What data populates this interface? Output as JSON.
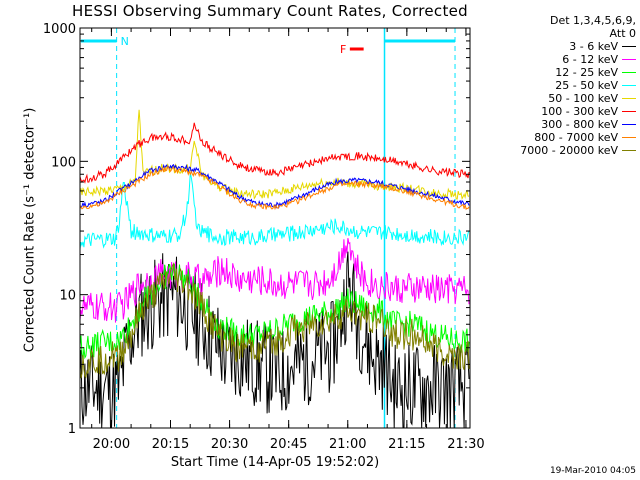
{
  "chart_data": {
    "type": "line",
    "title": "HESSI Observing Summary Count Rates, Corrected",
    "xlabel": "Start Time (14-Apr-05 19:52:02)",
    "ylabel": "Corrected Count Rate (s⁻¹ detector⁻¹)",
    "x_unit": "minutes after 19:52:02",
    "xlim": [
      0,
      99
    ],
    "ylim": [
      1,
      1000
    ],
    "yscale": "log",
    "x_tick_labels": [
      "20:00",
      "20:15",
      "20:30",
      "20:45",
      "21:00",
      "21:15",
      "21:30"
    ],
    "x_tick_values": [
      7.97,
      22.97,
      37.97,
      52.97,
      67.97,
      82.97,
      97.97
    ],
    "y_tick_labels": [
      "1",
      "10",
      "100",
      "1000"
    ],
    "y_tick_values": [
      1,
      10,
      100,
      1000
    ],
    "legend_header": [
      "Det 1,3,4,5,6,9,",
      "Att 0"
    ],
    "legend_position": "right",
    "annotations": {
      "night_label": "N",
      "flare_label": "F"
    },
    "series": [
      {
        "name": "3 - 6 keV",
        "color": "#000000",
        "x": [
          0,
          10,
          12,
          15,
          20,
          24,
          27,
          31,
          37,
          40,
          45,
          50,
          55,
          60,
          64,
          66,
          68,
          71,
          74,
          77,
          80,
          84,
          88,
          95
        ],
        "y": [
          2,
          2,
          4,
          7,
          9,
          10,
          8,
          6,
          3.5,
          3.5,
          3,
          2.5,
          3,
          3.5,
          4,
          6,
          12,
          6,
          3.5,
          3,
          2,
          2,
          2,
          2
        ]
      },
      {
        "name": "6 - 12 keV",
        "color": "#ff00ff",
        "x": [
          0,
          10,
          12,
          15,
          20,
          25,
          30,
          33,
          36,
          40,
          45,
          50,
          55,
          60,
          63,
          66,
          68,
          70,
          72,
          75,
          80,
          85,
          90,
          98
        ],
        "y": [
          8,
          8,
          9,
          12,
          14,
          14,
          13,
          13,
          16,
          13,
          13,
          12,
          12,
          12,
          13,
          18,
          28,
          16,
          13,
          12,
          11,
          11,
          11,
          11
        ]
      },
      {
        "name": "12 - 25 keV",
        "color": "#00ff00",
        "x": [
          0,
          10,
          13,
          16,
          20,
          23,
          27,
          31,
          35,
          40,
          45,
          50,
          55,
          60,
          64,
          68,
          72,
          76,
          80,
          85,
          90,
          95,
          98
        ],
        "y": [
          4,
          4.5,
          6,
          9,
          12,
          15,
          13,
          9,
          6,
          5,
          5,
          5.5,
          6.5,
          7,
          7.5,
          9,
          8,
          7.5,
          6,
          6,
          5,
          4.5,
          4.5
        ]
      },
      {
        "name": "25 - 50 keV",
        "color": "#00ffff",
        "x": [
          0,
          9,
          10,
          11,
          13,
          17,
          21,
          25,
          27,
          28,
          30,
          35,
          40,
          45,
          50,
          55,
          60,
          65,
          70,
          75,
          80,
          85,
          90,
          98
        ],
        "y": [
          25,
          26,
          35,
          70,
          30,
          28,
          27,
          28,
          40,
          75,
          30,
          27,
          27,
          27,
          28,
          29,
          31,
          33,
          30,
          29,
          29,
          28,
          27,
          27
        ]
      },
      {
        "name": "50 - 100 keV",
        "color": "#e6d800",
        "x": [
          0,
          10,
          14,
          15,
          16,
          18,
          22,
          26,
          28,
          29,
          31,
          35,
          40,
          45,
          50,
          55,
          60,
          65,
          70,
          75,
          80,
          85,
          90,
          98
        ],
        "y": [
          58,
          62,
          70,
          250,
          80,
          85,
          90,
          85,
          90,
          140,
          80,
          65,
          58,
          56,
          58,
          63,
          68,
          70,
          68,
          66,
          64,
          62,
          58,
          56
        ]
      },
      {
        "name": "100 - 300 keV",
        "color": "#ff0000",
        "x": [
          0,
          6,
          10,
          14,
          18,
          22,
          26,
          28,
          29,
          31,
          35,
          40,
          45,
          50,
          55,
          60,
          65,
          70,
          75,
          80,
          85,
          90,
          98
        ],
        "y": [
          72,
          80,
          100,
          130,
          150,
          155,
          145,
          145,
          190,
          140,
          115,
          95,
          85,
          82,
          90,
          100,
          108,
          110,
          105,
          100,
          92,
          85,
          80
        ]
      },
      {
        "name": "300 - 800 keV",
        "color": "#0000ff",
        "x": [
          0,
          6,
          10,
          14,
          18,
          22,
          26,
          30,
          35,
          40,
          45,
          50,
          55,
          60,
          65,
          70,
          75,
          80,
          85,
          90,
          98
        ],
        "y": [
          47,
          50,
          60,
          72,
          85,
          92,
          90,
          85,
          70,
          55,
          48,
          47,
          53,
          62,
          70,
          72,
          70,
          65,
          60,
          55,
          48
        ]
      },
      {
        "name": "800 - 7000 keV",
        "color": "#ff8000",
        "x": [
          0,
          6,
          10,
          14,
          18,
          22,
          26,
          30,
          35,
          40,
          45,
          50,
          55,
          60,
          65,
          70,
          75,
          80,
          85,
          90,
          98
        ],
        "y": [
          45,
          48,
          58,
          68,
          80,
          88,
          85,
          80,
          66,
          52,
          46,
          45,
          50,
          58,
          66,
          68,
          66,
          62,
          57,
          52,
          45
        ]
      },
      {
        "name": "7000 - 20000 keV",
        "color": "#808000",
        "x": [
          0,
          10,
          13,
          16,
          20,
          23,
          27,
          31,
          35,
          40,
          45,
          50,
          55,
          60,
          64,
          68,
          72,
          76,
          80,
          85,
          90,
          95,
          98
        ],
        "y": [
          3,
          3.5,
          5,
          8,
          11,
          14,
          12,
          8,
          5,
          4,
          4,
          4.5,
          5.5,
          6,
          6.5,
          7.5,
          7,
          6.5,
          5,
          5,
          4,
          3.5,
          3.5
        ]
      }
    ]
  },
  "timestamp": "19-Mar-2010 04:05"
}
